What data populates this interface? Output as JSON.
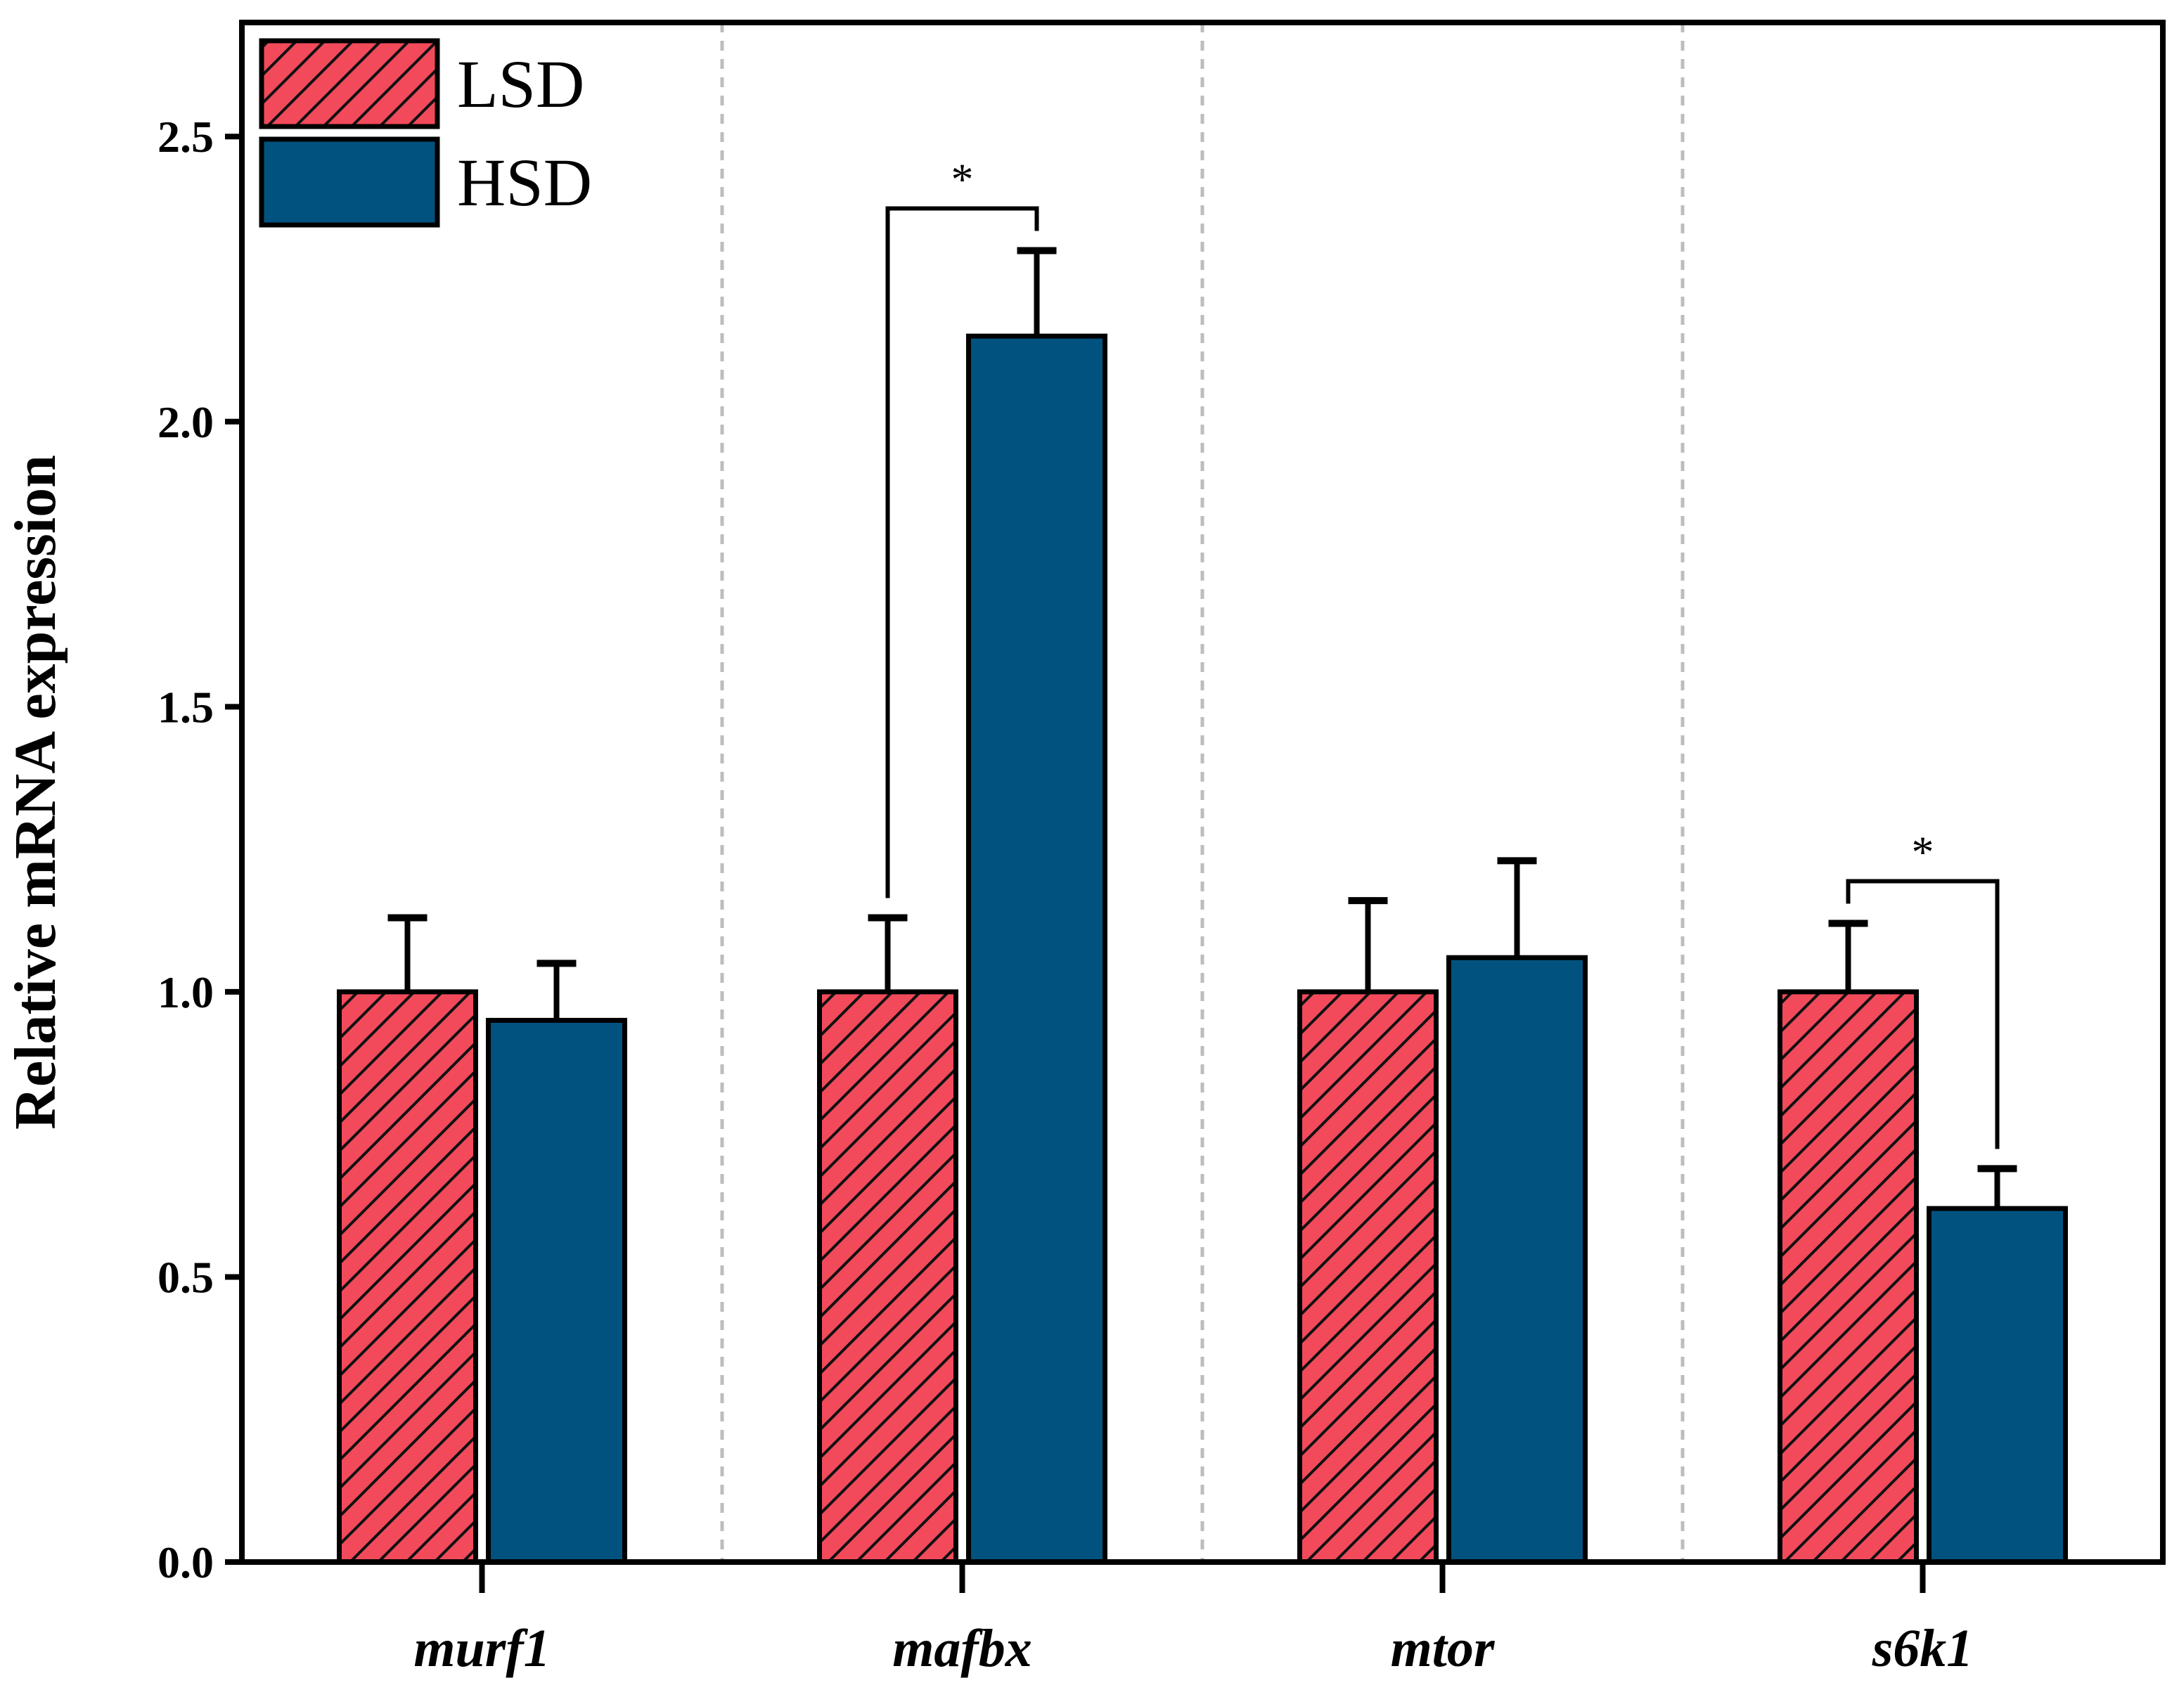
{
  "chart_data": {
    "type": "bar",
    "title": "",
    "xlabel": "",
    "ylabel": "Relative mRNA expression",
    "ylim": [
      0,
      2.7
    ],
    "yticks": [
      "0.0",
      "0.5",
      "1.0",
      "1.5",
      "2.0",
      "2.5"
    ],
    "categories": [
      "murf1",
      "mafbx",
      "mtor",
      "s6k1"
    ],
    "series": [
      {
        "name": "LSD",
        "color": "#F24A5A",
        "pattern": "diagonal-hatch",
        "values": [
          1.0,
          1.0,
          1.0,
          1.0
        ],
        "errors": [
          0.13,
          0.13,
          0.16,
          0.12
        ]
      },
      {
        "name": "HSD",
        "color": "#02527F",
        "pattern": "solid",
        "values": [
          0.95,
          2.15,
          1.06,
          0.62
        ],
        "errors": [
          0.1,
          0.15,
          0.17,
          0.07
        ]
      }
    ],
    "legend_position": "top-left",
    "significance": [
      {
        "category": "mafbx",
        "label": "*"
      },
      {
        "category": "s6k1",
        "label": "*"
      }
    ]
  }
}
